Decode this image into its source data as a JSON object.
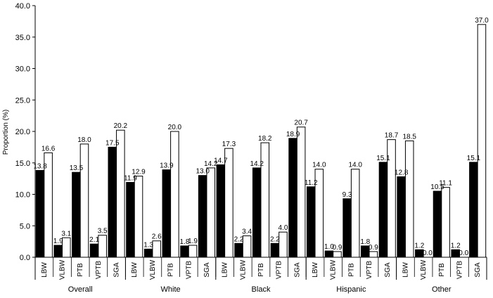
{
  "chart_data": {
    "type": "bar",
    "ylabel": "Proportion (%)",
    "ylim": [
      0,
      40
    ],
    "yticks": [
      "0.0",
      "5.0",
      "10.0",
      "15.0",
      "20.0",
      "25.0",
      "30.0",
      "35.0",
      "40.0"
    ],
    "grid": false,
    "legend": "none",
    "colors": {
      "series_1": "#000000",
      "series_2": "#ffffff",
      "stroke": "#000000"
    },
    "groups": [
      {
        "name": "Overall",
        "measures": [
          {
            "label": "LBW",
            "labels": [
              "13.8",
              "16.6"
            ],
            "values": [
              13.8,
              16.6
            ]
          },
          {
            "label": "VLBW",
            "labels": [
              "1.9",
              "3.1"
            ],
            "values": [
              1.9,
              3.1
            ]
          },
          {
            "label": "PTB",
            "labels": [
              "13.5",
              "18.0"
            ],
            "values": [
              13.5,
              18.0
            ]
          },
          {
            "label": "VPTB",
            "labels": [
              "2.1",
              "3.5"
            ],
            "values": [
              2.1,
              3.5
            ]
          },
          {
            "label": "SGA",
            "labels": [
              "17.5",
              "20.2"
            ],
            "values": [
              17.5,
              20.2
            ]
          }
        ]
      },
      {
        "name": "White",
        "measures": [
          {
            "label": "LBW",
            "labels": [
              "11.9",
              "12.9"
            ],
            "values": [
              11.9,
              12.9
            ]
          },
          {
            "label": "VLBW",
            "labels": [
              "1.3",
              "2.6"
            ],
            "values": [
              1.3,
              2.6
            ]
          },
          {
            "label": "PTB",
            "labels": [
              "13.9",
              "20.0"
            ],
            "values": [
              13.9,
              20.0
            ]
          },
          {
            "label": "VPTB",
            "labels": [
              "1.8",
              "1.9"
            ],
            "values": [
              1.8,
              1.9
            ]
          },
          {
            "label": "SGA",
            "labels": [
              "13.0",
              "14.2"
            ],
            "values": [
              13.0,
              14.2
            ]
          }
        ]
      },
      {
        "name": "Black",
        "measures": [
          {
            "label": "LBW",
            "labels": [
              "14.7",
              "17.3"
            ],
            "values": [
              14.7,
              17.3
            ]
          },
          {
            "label": "VLBW",
            "labels": [
              "2.2",
              "3.4"
            ],
            "values": [
              2.2,
              3.4
            ]
          },
          {
            "label": "PTB",
            "labels": [
              "14.2",
              "18.2"
            ],
            "values": [
              14.2,
              18.2
            ]
          },
          {
            "label": "VPTB",
            "labels": [
              "2.2",
              "4.0"
            ],
            "values": [
              2.2,
              4.0
            ]
          },
          {
            "label": "SGA",
            "labels": [
              "18.9",
              "20.7"
            ],
            "values": [
              18.9,
              20.7
            ]
          }
        ]
      },
      {
        "name": "Hispanic",
        "measures": [
          {
            "label": "LBW",
            "labels": [
              "11.2",
              "14.0"
            ],
            "values": [
              11.2,
              14.0
            ]
          },
          {
            "label": "VLBW",
            "labels": [
              "1.0",
              "0.9"
            ],
            "values": [
              1.0,
              0.9
            ]
          },
          {
            "label": "PTB",
            "labels": [
              "9.3",
              "14.0"
            ],
            "values": [
              9.3,
              14.0
            ]
          },
          {
            "label": "VPTB",
            "labels": [
              "1.8",
              "0.9"
            ],
            "values": [
              1.8,
              0.9
            ]
          },
          {
            "label": "SGA",
            "labels": [
              "15.1",
              "18.7"
            ],
            "values": [
              15.1,
              18.7
            ]
          }
        ]
      },
      {
        "name": "Other",
        "measures": [
          {
            "label": "LBW",
            "labels": [
              "12.8",
              "18.5"
            ],
            "values": [
              12.8,
              18.5
            ]
          },
          {
            "label": "VLBW",
            "labels": [
              "1.2",
              "0.0"
            ],
            "values": [
              1.2,
              0.0
            ]
          },
          {
            "label": "PTB",
            "labels": [
              "10.5",
              "11.1"
            ],
            "values": [
              10.5,
              11.1
            ]
          },
          {
            "label": "VPTB",
            "labels": [
              "1.2",
              "0.0"
            ],
            "values": [
              1.2,
              0.0
            ]
          },
          {
            "label": "SGA",
            "labels": [
              "15.1",
              "37.0"
            ],
            "values": [
              15.1,
              37.0
            ]
          }
        ]
      }
    ]
  }
}
